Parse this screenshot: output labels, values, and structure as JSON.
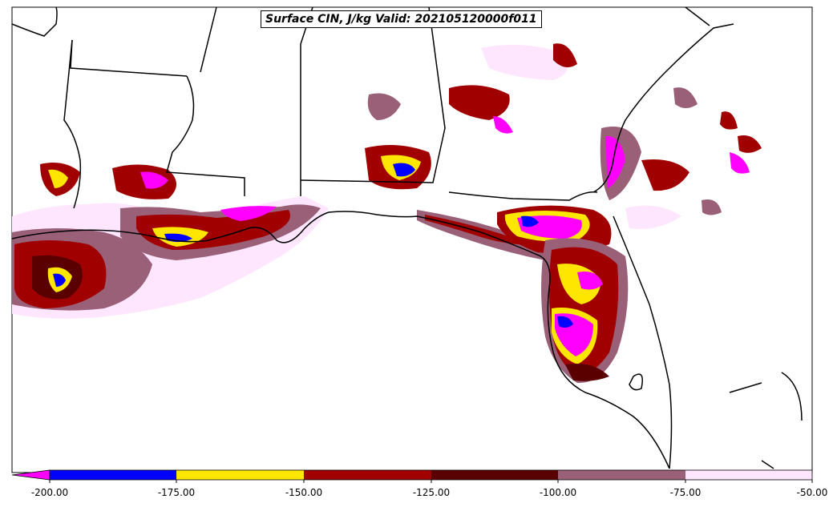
{
  "title": "Surface CIN, J/kg Valid: 202105120000f011",
  "colorbar": {
    "ticks": [
      "-200.00",
      "-175.00",
      "-150.00",
      "-125.00",
      "-100.00",
      "-75.00",
      "-50.00"
    ],
    "bins": [
      {
        "range": "below -200",
        "color": "#ff00ff"
      },
      {
        "range": "-200 to -175",
        "color": "#0000ff"
      },
      {
        "range": "-175 to -150",
        "color": "#ffe600"
      },
      {
        "range": "-150 to -125",
        "color": "#a00000"
      },
      {
        "range": "-125 to -100",
        "color": "#5a0000"
      },
      {
        "range": "-100 to -75",
        "color": "#9a6078"
      },
      {
        "range": "-75 to -50",
        "color": "#ffe6ff"
      }
    ]
  },
  "colors": {
    "lightest": "#ffe6ff",
    "mauve": "#9a6078",
    "darkred": "#5a0000",
    "red": "#a00000",
    "yellow": "#ffe600",
    "blue": "#0000ff",
    "magenta": "#ff00ff",
    "outline": "#000000"
  }
}
